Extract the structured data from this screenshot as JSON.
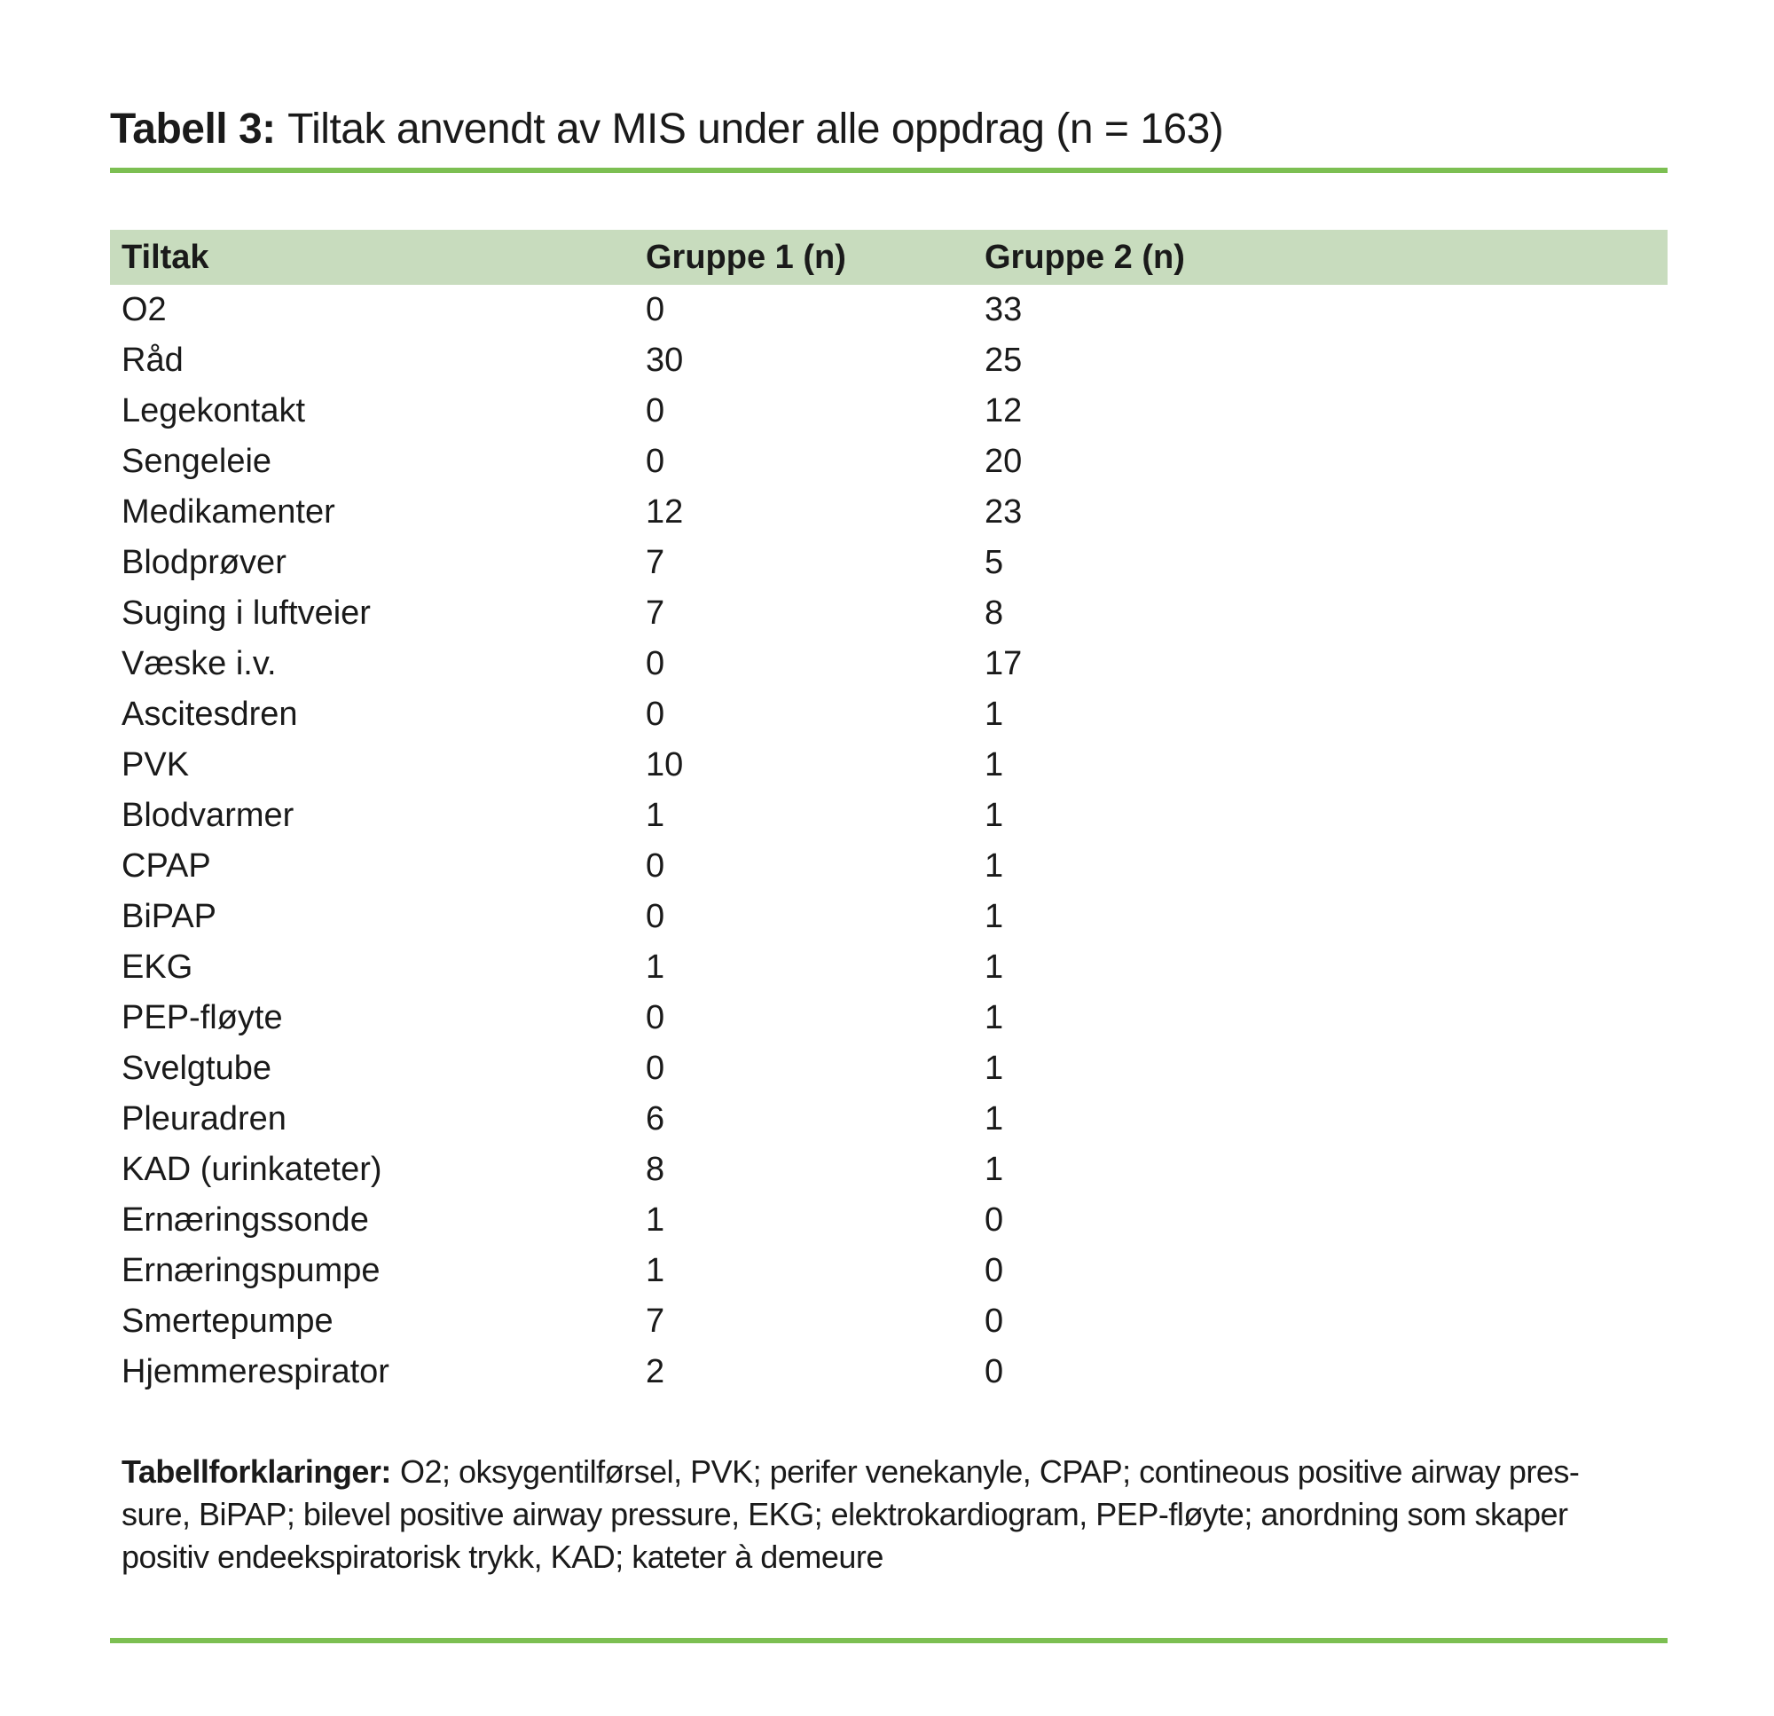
{
  "title": {
    "label": "Tabell 3:",
    "text": "Tiltak anvendt av MIS under alle oppdrag (n = 163)"
  },
  "table": {
    "columns": [
      "Tiltak",
      "Gruppe 1 (n)",
      "Gruppe 2 (n)"
    ],
    "rows": [
      {
        "tiltak": "O2",
        "gruppe1": "0",
        "gruppe2": "33"
      },
      {
        "tiltak": "Råd",
        "gruppe1": "30",
        "gruppe2": "25"
      },
      {
        "tiltak": "Legekontakt",
        "gruppe1": "0",
        "gruppe2": "12"
      },
      {
        "tiltak": "Sengeleie",
        "gruppe1": "0",
        "gruppe2": "20"
      },
      {
        "tiltak": "Medikamenter",
        "gruppe1": "12",
        "gruppe2": "23"
      },
      {
        "tiltak": "Blodprøver",
        "gruppe1": "7",
        "gruppe2": "5"
      },
      {
        "tiltak": "Suging i luftveier",
        "gruppe1": "7",
        "gruppe2": "8"
      },
      {
        "tiltak": "Væske i.v.",
        "gruppe1": "0",
        "gruppe2": "17"
      },
      {
        "tiltak": "Ascitesdren",
        "gruppe1": "0",
        "gruppe2": "1"
      },
      {
        "tiltak": "PVK",
        "gruppe1": "10",
        "gruppe2": "1"
      },
      {
        "tiltak": "Blodvarmer",
        "gruppe1": "1",
        "gruppe2": "1"
      },
      {
        "tiltak": "CPAP",
        "gruppe1": "0",
        "gruppe2": "1"
      },
      {
        "tiltak": "BiPAP",
        "gruppe1": "0",
        "gruppe2": "1"
      },
      {
        "tiltak": "EKG",
        "gruppe1": "1",
        "gruppe2": "1"
      },
      {
        "tiltak": "PEP-fløyte",
        "gruppe1": "0",
        "gruppe2": "1"
      },
      {
        "tiltak": "Svelgtube",
        "gruppe1": "0",
        "gruppe2": "1"
      },
      {
        "tiltak": "Pleuradren",
        "gruppe1": "6",
        "gruppe2": "1"
      },
      {
        "tiltak": "KAD (urinkateter)",
        "gruppe1": "8",
        "gruppe2": "1"
      },
      {
        "tiltak": "Ernæringssonde",
        "gruppe1": "1",
        "gruppe2": "0"
      },
      {
        "tiltak": "Ernæringspumpe",
        "gruppe1": "1",
        "gruppe2": "0"
      },
      {
        "tiltak": "Smertepumpe",
        "gruppe1": "7",
        "gruppe2": "0"
      },
      {
        "tiltak": "Hjemmerespirator",
        "gruppe1": "2",
        "gruppe2": "0"
      }
    ]
  },
  "footnote": {
    "label": "Tabellforklaringer:",
    "lines": [
      "O2; oksygentilførsel, PVK; perifer venekanyle, CPAP; contineous positive airway pres-",
      "sure, BiPAP; bilevel positive airway pressure, EKG; elektrokardiogram, PEP-fløyte; anordning som skaper",
      "positiv endeekspiratorisk trykk, KAD; kateter à demeure"
    ]
  },
  "colors": {
    "accent_line": "#7cbf52",
    "header_fill": "#c8dcbe",
    "text": "#1a1a1a"
  },
  "chart_data": {
    "type": "table",
    "title": "Tabell 3: Tiltak anvendt av MIS under alle oppdrag (n = 163)",
    "categories": [
      "O2",
      "Råd",
      "Legekontakt",
      "Sengeleie",
      "Medikamenter",
      "Blodprøver",
      "Suging i luftveier",
      "Væske i.v.",
      "Ascitesdren",
      "PVK",
      "Blodvarmer",
      "CPAP",
      "BiPAP",
      "EKG",
      "PEP-fløyte",
      "Svelgtube",
      "Pleuradren",
      "KAD (urinkateter)",
      "Ernæringssonde",
      "Ernæringspumpe",
      "Smertepumpe",
      "Hjemmerespirator"
    ],
    "series": [
      {
        "name": "Gruppe 1 (n)",
        "values": [
          0,
          30,
          0,
          0,
          12,
          7,
          7,
          0,
          0,
          10,
          1,
          0,
          0,
          1,
          0,
          0,
          6,
          8,
          1,
          1,
          7,
          2
        ]
      },
      {
        "name": "Gruppe 2 (n)",
        "values": [
          33,
          25,
          12,
          20,
          23,
          5,
          8,
          17,
          1,
          1,
          1,
          1,
          1,
          1,
          1,
          1,
          1,
          1,
          0,
          0,
          0,
          0
        ]
      }
    ]
  }
}
